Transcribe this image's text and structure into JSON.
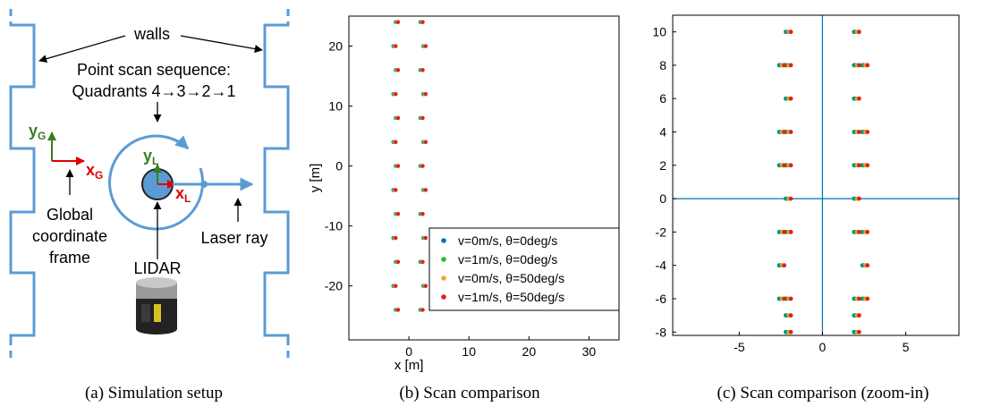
{
  "diagram": {
    "walls_label": "walls",
    "scan_sequence": [
      "Point scan sequence:",
      "Quadrants 4→3→2→1"
    ],
    "global_y": {
      "letter": "y",
      "subscript": "G"
    },
    "global_x": {
      "letter": "x",
      "subscript": "G"
    },
    "lidar_y": {
      "letter": "y",
      "subscript": "L"
    },
    "lidar_x": {
      "letter": "x",
      "subscript": "L"
    },
    "global_frame_label": [
      "Global",
      "coordinate",
      "frame"
    ],
    "lidar_label": "LIDAR",
    "laser_label": "Laser ray"
  },
  "captions": [
    "(a) Simulation setup",
    "(b) Scan comparison",
    "(c) Scan comparison (zoom-in)"
  ],
  "chart_data": [
    {
      "type": "scatter",
      "xlabel": "x [m]",
      "ylabel": "y [m]",
      "xlim": [
        -10,
        35
      ],
      "ylim": [
        -29,
        25
      ],
      "xticks": [
        0,
        10,
        20,
        30
      ],
      "yticks": [
        -20,
        -10,
        0,
        10,
        20
      ],
      "legend": "lower right",
      "series": [
        {
          "name": "v=0m/s,  θ=0deg/s",
          "color": "#0072bd",
          "x": [
            -2.2,
            -2.6,
            -2.2,
            -2.6,
            -2.2,
            -2.6,
            -2.2,
            -2.6,
            -2.2,
            -2.6,
            -2.2,
            -2.6,
            -2.2,
            1.9,
            2.4,
            1.9,
            2.4,
            1.9,
            2.4,
            1.9,
            2.4,
            1.9,
            2.4,
            1.9,
            2.4,
            1.9
          ],
          "y": [
            -24,
            -20,
            -16,
            -12,
            -8,
            -4,
            0,
            4,
            8,
            12,
            16,
            20,
            24,
            -24,
            -20,
            -16,
            -12,
            -8,
            -4,
            0,
            4,
            8,
            12,
            16,
            20,
            24
          ]
        },
        {
          "name": "v=1m/s,  θ=0deg/s",
          "color": "#22c022",
          "x": [
            -2.1,
            -2.5,
            -2.1,
            -2.5,
            -2.1,
            -2.5,
            -2.1,
            -2.5,
            -2.1,
            -2.5,
            -2.1,
            -2.5,
            -2.1,
            2,
            2.5,
            2,
            2.5,
            2,
            2.5,
            2,
            2.5,
            2,
            2.5,
            2,
            2.5,
            2
          ],
          "y": [
            -24,
            -20,
            -16,
            -12,
            -8,
            -4,
            0,
            4,
            8,
            12,
            16,
            20,
            24,
            -24,
            -20,
            -16,
            -12,
            -8,
            -4,
            0,
            4,
            8,
            12,
            16,
            20,
            24
          ]
        },
        {
          "name": "v=0m/s,  θ=50deg/s",
          "color": "#f0a830",
          "x": [
            -1.9,
            -2.3,
            -1.9,
            -2.3,
            -1.9,
            -2.3,
            -1.9,
            -2.3,
            -1.9,
            -2.3,
            -1.9,
            -2.3,
            -1.9,
            2.2,
            2.7,
            2.2,
            2.7,
            2.2,
            2.7,
            2.2,
            2.7,
            2.2,
            2.7,
            2.2,
            2.7,
            2.2
          ],
          "y": [
            -24,
            -20,
            -16,
            -12,
            -8,
            -4,
            0,
            4,
            8,
            12,
            16,
            20,
            24,
            -24,
            -20,
            -16,
            -12,
            -8,
            -4,
            0,
            4,
            8,
            12,
            16,
            20,
            24
          ]
        },
        {
          "name": "v=1m/s,  θ=50deg/s",
          "color": "#e02020",
          "x": [
            -1.8,
            -2.2,
            -1.8,
            -2.2,
            -1.8,
            -2.2,
            -1.8,
            -2.2,
            -1.8,
            -2.2,
            -1.8,
            -2.2,
            -1.8,
            2.3,
            2.8,
            2.3,
            2.8,
            2.3,
            2.8,
            2.3,
            2.8,
            2.3,
            2.8,
            2.3,
            2.8,
            2.3
          ],
          "y": [
            -24,
            -20,
            -16,
            -12,
            -8,
            -4,
            0,
            4,
            8,
            12,
            16,
            20,
            24,
            -24,
            -20,
            -16,
            -12,
            -8,
            -4,
            0,
            4,
            8,
            12,
            16,
            20,
            24
          ]
        }
      ]
    },
    {
      "type": "scatter",
      "xlim": [
        -9,
        8.2
      ],
      "ylim": [
        -8.2,
        11
      ],
      "xticks": [
        -5,
        0,
        5
      ],
      "yticks": [
        -8,
        -6,
        -4,
        -2,
        0,
        2,
        4,
        6,
        8,
        10
      ],
      "zero_lines": true,
      "series": [
        {
          "name": "v=0m/s,  θ=0deg/s",
          "color": "#0072bd",
          "x": [
            -2.2,
            -2.2,
            -2.2,
            -2.6,
            -2.6,
            -2.6,
            -2.2,
            -2.2,
            -2.2,
            -2.6,
            -2.6,
            -2.2,
            -2.2,
            -2.2,
            -2.6,
            -2.2,
            1.9,
            1.9,
            1.9,
            2.4,
            2.4,
            2.4,
            1.9,
            1.9,
            1.9,
            2.4,
            2.4,
            1.9,
            1.9,
            1.9,
            2.4,
            1.9
          ],
          "y": [
            -8,
            -7,
            -6,
            -6,
            -4,
            -2,
            -2,
            0,
            2,
            2,
            4,
            4,
            6,
            8,
            8,
            10,
            -8,
            -7,
            -6,
            -6,
            -4,
            -2,
            -2,
            0,
            2,
            2,
            4,
            4,
            6,
            8,
            8,
            10
          ]
        },
        {
          "name": "v=1m/s,  θ=0deg/s",
          "color": "#22c022",
          "x": [
            -2.1,
            -2.1,
            -2.1,
            -2.5,
            -2.5,
            -2.5,
            -2.1,
            -2.1,
            -2.1,
            -2.5,
            -2.5,
            -2.1,
            -2.1,
            -2.1,
            -2.5,
            -2.1,
            2,
            2,
            2,
            2.5,
            2.5,
            2.5,
            2,
            2,
            2,
            2.5,
            2.5,
            2,
            2,
            2,
            2.5,
            2
          ],
          "y": [
            -8,
            -7,
            -6,
            -6,
            -4,
            -2,
            -2,
            0,
            2,
            2,
            4,
            4,
            6,
            8,
            8,
            10,
            -8,
            -7,
            -6,
            -6,
            -4,
            -2,
            -2,
            0,
            2,
            2,
            4,
            4,
            6,
            8,
            8,
            10
          ]
        },
        {
          "name": "v=0m/s,  θ=50deg/s",
          "color": "#f0a830",
          "x": [
            -2,
            -2,
            -2,
            -2.4,
            -2.4,
            -2.4,
            -2,
            -2,
            -2,
            -2.4,
            -2.4,
            -2,
            -2,
            -2,
            -2.4,
            -2,
            2.1,
            2.1,
            2.1,
            2.6,
            2.6,
            2.6,
            2.1,
            2.1,
            2.1,
            2.6,
            2.6,
            2.1,
            2.1,
            2.1,
            2.6,
            2.1
          ],
          "y": [
            -8,
            -7,
            -6,
            -6,
            -4,
            -2,
            -2,
            0,
            2,
            2,
            4,
            4,
            6,
            8,
            8,
            10,
            -8,
            -7,
            -6,
            -6,
            -4,
            -2,
            -2,
            0,
            2,
            2,
            4,
            4,
            6,
            8,
            8,
            10
          ]
        },
        {
          "name": "v=1m/s,  θ=50deg/s",
          "color": "#e02020",
          "x": [
            -1.9,
            -1.9,
            -1.9,
            -2.3,
            -2.3,
            -2.3,
            -1.9,
            -1.9,
            -1.9,
            -2.3,
            -2.3,
            -1.9,
            -1.9,
            -1.9,
            -2.3,
            -1.9,
            2.2,
            2.2,
            2.2,
            2.7,
            2.7,
            2.7,
            2.2,
            2.2,
            2.2,
            2.7,
            2.7,
            2.2,
            2.2,
            2.2,
            2.7,
            2.2
          ],
          "y": [
            -8,
            -7,
            -6,
            -6,
            -4,
            -2,
            -2,
            0,
            2,
            2,
            4,
            4,
            6,
            8,
            8,
            10,
            -8,
            -7,
            -6,
            -6,
            -4,
            -2,
            -2,
            0,
            2,
            2,
            4,
            4,
            6,
            8,
            8,
            10
          ]
        }
      ]
    }
  ]
}
